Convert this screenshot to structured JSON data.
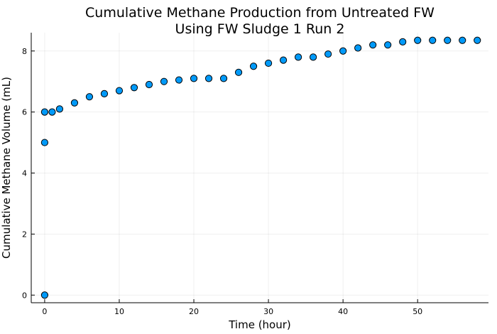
{
  "chart_data": {
    "type": "scatter",
    "title_line1": "Cumulative Methane Production from Untreated FW",
    "title_line2": "Using FW Sludge 1 Run 2",
    "xlabel": "Time (hour)",
    "ylabel": "Cumulative Methane Volume (mL)",
    "xlim": [
      -1.8,
      59.5
    ],
    "ylim": [
      -0.25,
      8.6
    ],
    "xticks": [
      0,
      10,
      20,
      30,
      40,
      50
    ],
    "yticks": [
      0,
      2,
      4,
      6,
      8
    ],
    "grid": true,
    "legend": "none",
    "marker_color": "#009af9",
    "series": [
      {
        "x": [
          0,
          0,
          0,
          1,
          2,
          4,
          6,
          8,
          10,
          12,
          14,
          16,
          18,
          20,
          22,
          24,
          26,
          28,
          30,
          32,
          34,
          36,
          38,
          40,
          42,
          44,
          46,
          48,
          50,
          52,
          54,
          56,
          58
        ],
        "y": [
          0,
          5.0,
          6.0,
          6.0,
          6.1,
          6.3,
          6.5,
          6.6,
          6.7,
          6.8,
          6.9,
          7.0,
          7.05,
          7.1,
          7.1,
          7.1,
          7.3,
          7.5,
          7.6,
          7.7,
          7.8,
          7.8,
          7.9,
          8.0,
          8.1,
          8.2,
          8.2,
          8.3,
          8.35,
          8.35,
          8.35,
          8.35,
          8.35
        ]
      }
    ]
  }
}
